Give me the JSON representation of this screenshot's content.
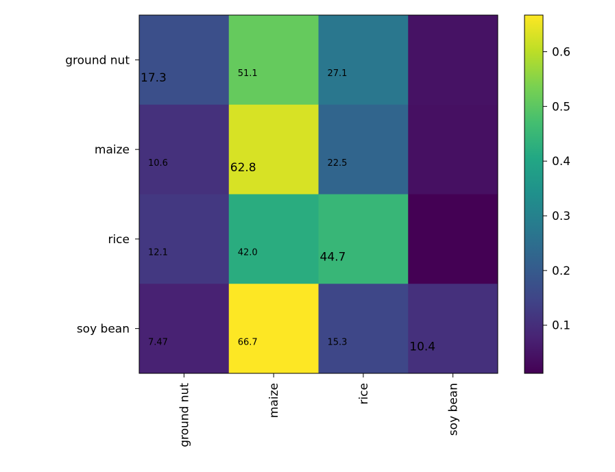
{
  "chart_data": {
    "type": "heatmap",
    "title": "",
    "xlabel": "",
    "ylabel": "",
    "x_categories": [
      "ground nut",
      "maize",
      "rice",
      "soy bean"
    ],
    "y_categories": [
      "ground nut",
      "maize",
      "rice",
      "soy bean"
    ],
    "values": [
      [
        0.173,
        0.511,
        0.271,
        0.045
      ],
      [
        0.106,
        0.628,
        0.225,
        0.04
      ],
      [
        0.121,
        0.42,
        0.447,
        0.012
      ],
      [
        0.0747,
        0.667,
        0.153,
        0.104
      ]
    ],
    "cell_labels": [
      [
        "17.3",
        "51.1",
        "27.1",
        ""
      ],
      [
        "10.6",
        "62.8",
        "22.5",
        ""
      ],
      [
        "12.1",
        "42.0",
        "44.7",
        ""
      ],
      [
        "7.47",
        "66.7",
        "15.3",
        "10.4"
      ]
    ],
    "diagonal_labels_emphasized": true,
    "colormap": "viridis",
    "colorbar": {
      "range": [
        0.012,
        0.667
      ],
      "ticks": [
        0.1,
        0.2,
        0.3,
        0.4,
        0.5,
        0.6
      ],
      "tick_labels": [
        "0.1",
        "0.2",
        "0.3",
        "0.4",
        "0.5",
        "0.6"
      ]
    },
    "x_tick_rotation": "vertical"
  }
}
